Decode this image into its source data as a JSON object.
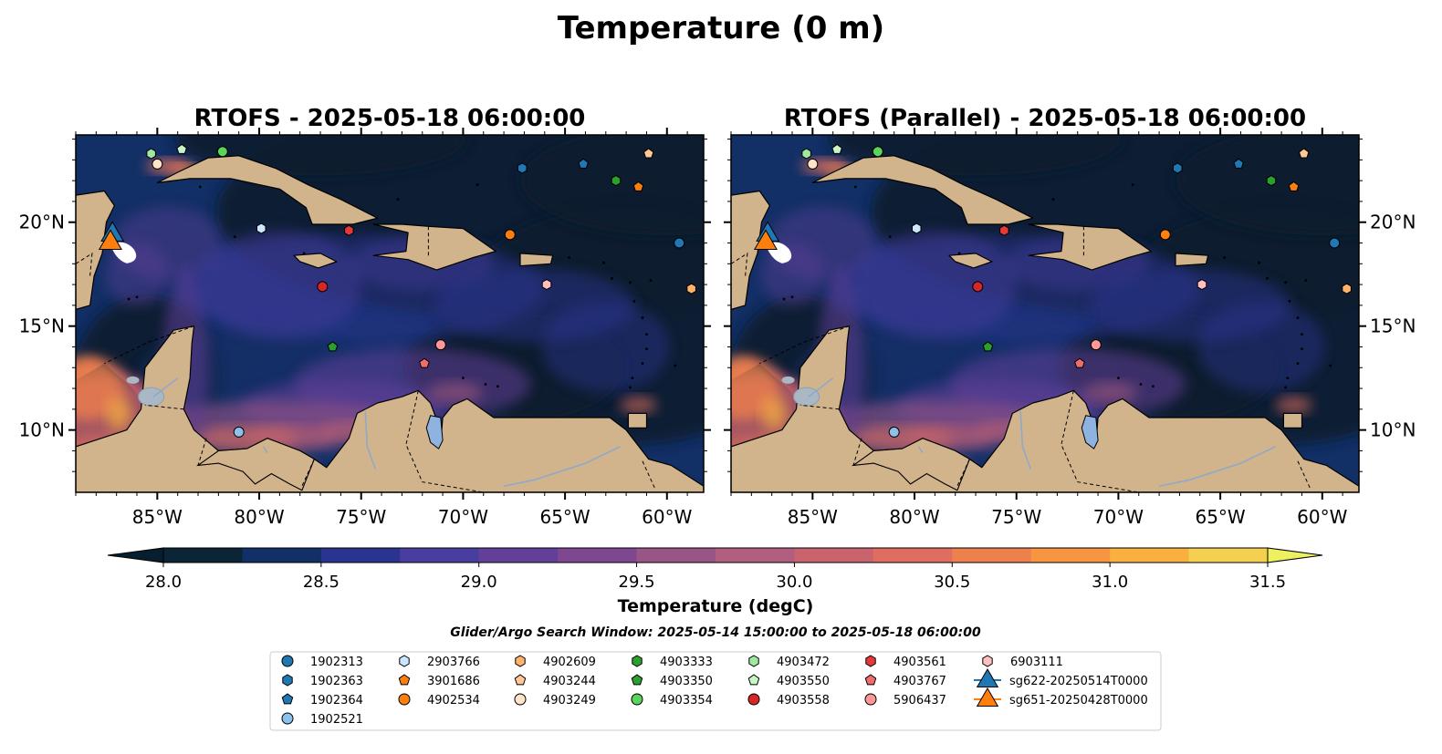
{
  "figure": {
    "title": "Temperature (0 m)",
    "search_window": "Glider/Argo Search Window: 2025-05-14 15:00:00 to 2025-05-18 06:00:00"
  },
  "panels": [
    {
      "id": "rtofs",
      "title": "RTOFS - 2025-05-18 06:00:00"
    },
    {
      "id": "rtofs-parallel",
      "title": "RTOFS (Parallel) - 2025-05-18 06:00:00"
    }
  ],
  "map": {
    "lon_range": [
      -89,
      -58.2
    ],
    "lat_range": [
      7,
      24.2
    ],
    "lon_ticks": [
      -85,
      -80,
      -75,
      -70,
      -65,
      -60
    ],
    "lon_tick_labels": [
      "85°W",
      "80°W",
      "75°W",
      "70°W",
      "65°W",
      "60°W"
    ],
    "lat_ticks": [
      10,
      15,
      20
    ],
    "lat_tick_labels": [
      "10°N",
      "15°N",
      "20°N"
    ],
    "colors": {
      "land": "#d2b48c",
      "ocean_dark": "#071e2e",
      "coast": "#000000",
      "lake": "#8fb3e0"
    }
  },
  "colorbar": {
    "label": "Temperature (degC)",
    "min": 28.0,
    "max": 31.5,
    "ticks": [
      28.0,
      28.5,
      29.0,
      29.5,
      30.0,
      30.5,
      31.0,
      31.5
    ],
    "tick_labels": [
      "28.0",
      "28.5",
      "29.0",
      "29.5",
      "30.0",
      "30.5",
      "31.0",
      "31.5"
    ],
    "extend": "both",
    "colors": [
      "#071e2e",
      "#0b2536",
      "#122f66",
      "#2a3490",
      "#4a3da0",
      "#643f9a",
      "#7e4890",
      "#995585",
      "#b15e80",
      "#c9646f",
      "#de6e5f",
      "#ee804e",
      "#f79540",
      "#f9b040",
      "#f5cf50",
      "#eef060"
    ]
  },
  "floats": [
    {
      "id": "1902313",
      "marker": "circle",
      "color": "#1f77b4",
      "lon": -59.4,
      "lat": 19.0
    },
    {
      "id": "1902363",
      "marker": "hexagon",
      "color": "#1f77b4",
      "lon": -67.1,
      "lat": 22.6
    },
    {
      "id": "1902364",
      "marker": "pentagon",
      "color": "#1f77b4",
      "lon": -64.1,
      "lat": 22.8
    },
    {
      "id": "1902521",
      "marker": "circle",
      "color": "#8ec1ea",
      "lon": -81.0,
      "lat": 9.9
    },
    {
      "id": "2903766",
      "marker": "hexagon",
      "color": "#cce6ff",
      "lon": -79.9,
      "lat": 19.7
    },
    {
      "id": "3901686",
      "marker": "pentagon",
      "color": "#ff7f0e",
      "lon": -61.4,
      "lat": 21.7
    },
    {
      "id": "4902534",
      "marker": "circle",
      "color": "#ff7f0e",
      "lon": -67.7,
      "lat": 19.4
    },
    {
      "id": "4902609",
      "marker": "hexagon",
      "color": "#ffb26b",
      "lon": -58.8,
      "lat": 16.8
    },
    {
      "id": "4903244",
      "marker": "pentagon",
      "color": "#ffc896",
      "lon": -60.9,
      "lat": 23.3
    },
    {
      "id": "4903249",
      "marker": "circle",
      "color": "#ffe4c8",
      "lon": -85.0,
      "lat": 22.8
    },
    {
      "id": "4903333",
      "marker": "hexagon",
      "color": "#2ca02c",
      "lon": -62.5,
      "lat": 22.0
    },
    {
      "id": "4903350",
      "marker": "pentagon",
      "color": "#2ca02c",
      "lon": -76.4,
      "lat": 14.0
    },
    {
      "id": "4903354",
      "marker": "circle",
      "color": "#5ad45a",
      "lon": -81.8,
      "lat": 23.4
    },
    {
      "id": "4903472",
      "marker": "hexagon",
      "color": "#9fe89f",
      "lon": -85.3,
      "lat": 23.3
    },
    {
      "id": "4903550",
      "marker": "pentagon",
      "color": "#c8f5c8",
      "lon": -83.8,
      "lat": 23.5
    },
    {
      "id": "4903558",
      "marker": "circle",
      "color": "#d62728",
      "lon": -76.9,
      "lat": 16.9
    },
    {
      "id": "4903561",
      "marker": "hexagon",
      "color": "#e3393a",
      "lon": -75.6,
      "lat": 19.6
    },
    {
      "id": "4903767",
      "marker": "pentagon",
      "color": "#f06d6d",
      "lon": -71.9,
      "lat": 13.2
    },
    {
      "id": "5906437",
      "marker": "circle",
      "color": "#ff9896",
      "lon": -71.1,
      "lat": 14.1
    },
    {
      "id": "6903111",
      "marker": "hexagon",
      "color": "#ffc0c0",
      "lon": -65.9,
      "lat": 17.0
    }
  ],
  "gliders": [
    {
      "id": "sg622-20250514T0000",
      "marker": "triangle",
      "color": "#1f77b4",
      "lon": -87.2,
      "lat": 19.4
    },
    {
      "id": "sg651-20250428T0000",
      "marker": "triangle",
      "color": "#ff7f0e",
      "lon": -87.3,
      "lat": 19.0
    }
  ]
}
